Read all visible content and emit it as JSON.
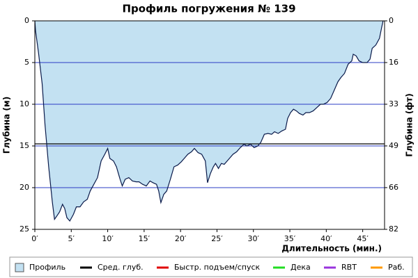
{
  "chart_data": {
    "type": "area",
    "title": "Профиль погружения № 139",
    "x_label": "Длительность (мин.)",
    "y_label": "Глубина (м)",
    "y2_label": "Глубина (фт)",
    "xlim": [
      0,
      48
    ],
    "xticks": [
      {
        "value": 0,
        "label": "0′"
      },
      {
        "value": 5,
        "label": "5′"
      },
      {
        "value": 10,
        "label": "10′"
      },
      {
        "value": 15,
        "label": "15′"
      },
      {
        "value": 20,
        "label": "20′"
      },
      {
        "value": 25,
        "label": "25′"
      },
      {
        "value": 30,
        "label": "30′"
      },
      {
        "value": 35,
        "label": "35′"
      },
      {
        "value": 40,
        "label": "40′"
      },
      {
        "value": 45,
        "label": "45′"
      }
    ],
    "ylim": [
      0,
      25
    ],
    "y_inverted": true,
    "yticks": [
      0,
      5,
      10,
      15,
      20,
      25
    ],
    "y2lim": [
      0,
      82.02
    ],
    "y2ticks": [
      0,
      {
        "value": 16.4,
        "label": "16"
      },
      {
        "value": 32.8,
        "label": "33"
      },
      {
        "value": 49.2,
        "label": "49"
      },
      {
        "value": 65.6,
        "label": "66"
      },
      {
        "value": 82.02,
        "label": "82"
      }
    ],
    "grid": true,
    "grid_color": "#2b3cc4",
    "series": [
      {
        "name": "Профиль",
        "color": "#0a1a4a",
        "fill": "#c3e1f2",
        "x": [
          0,
          0.1,
          0.5,
          1,
          1.4,
          1.9,
          2.4,
          2.7,
          3.1,
          3.4,
          3.8,
          4.1,
          4.4,
          4.8,
          5.3,
          5.7,
          6.2,
          6.7,
          7.2,
          7.6,
          8.1,
          8.6,
          9.1,
          9.6,
          10,
          10.3,
          10.8,
          11.2,
          11.7,
          12,
          12.4,
          12.9,
          13.4,
          13.9,
          14.3,
          14.8,
          15.3,
          15.8,
          16.2,
          16.7,
          17,
          17.3,
          17.7,
          18.1,
          18.6,
          19.1,
          19.6,
          20.1,
          20.5,
          21,
          21.5,
          21.9,
          22.4,
          22.9,
          23.4,
          23.7,
          24.1,
          24.5,
          24.8,
          25.2,
          25.6,
          26,
          26.4,
          26.7,
          27.2,
          27.7,
          28.2,
          28.7,
          29.1,
          29.6,
          30.1,
          30.6,
          31,
          31.5,
          32,
          32.5,
          32.9,
          33.4,
          33.9,
          34.4,
          34.7,
          35.1,
          35.5,
          35.9,
          36.3,
          36.8,
          37.2,
          37.7,
          38.2,
          38.7,
          39.2,
          39.6,
          40.1,
          40.6,
          41.1,
          41.6,
          42,
          42.5,
          43,
          43.5,
          43.7,
          44.1,
          44.5,
          45,
          45.6,
          46,
          46.3,
          46.8,
          47.3,
          47.6,
          47.8
        ],
        "values": [
          0,
          1.2,
          3.8,
          7.5,
          12.5,
          17.5,
          21.7,
          23.8,
          23.3,
          22.9,
          22,
          22.5,
          23.6,
          24,
          23.2,
          22.3,
          22.3,
          21.7,
          21.4,
          20.4,
          19.6,
          18.8,
          16.8,
          16,
          15.3,
          16.5,
          16.8,
          17.5,
          19,
          19.8,
          19,
          18.8,
          19.2,
          19.3,
          19.3,
          19.6,
          19.8,
          19.2,
          19.4,
          19.6,
          20.4,
          21.8,
          20.8,
          20.4,
          19,
          17.5,
          17.3,
          16.9,
          16.5,
          16,
          15.7,
          15.3,
          15.8,
          16,
          16.8,
          19.4,
          18.3,
          17.5,
          17.1,
          17.7,
          17.1,
          17.2,
          16.8,
          16.5,
          16,
          15.7,
          15.2,
          14.8,
          15,
          14.8,
          15.2,
          15,
          14.6,
          13.6,
          13.5,
          13.6,
          13.3,
          13.5,
          13.2,
          13,
          11.7,
          11,
          10.6,
          10.8,
          11.1,
          11.3,
          11,
          11,
          10.8,
          10.4,
          10,
          10,
          9.8,
          9.3,
          8.3,
          7.3,
          6.8,
          6.3,
          5.2,
          4.8,
          4,
          4.2,
          4.8,
          5,
          5,
          4.6,
          3.3,
          2.9,
          2.1,
          0.8,
          0
        ]
      },
      {
        "name": "Сред. глуб.",
        "color": "#000000",
        "values": [
          14.75
        ]
      }
    ],
    "legend_extra": [
      {
        "name": "Быстр. подъем/спуск",
        "color": "#e00000"
      },
      {
        "name": "Дека",
        "color": "#22dd22"
      },
      {
        "name": "RBT",
        "color": "#9933dd"
      },
      {
        "name": "Раб.",
        "color": "#ff9900"
      }
    ]
  }
}
